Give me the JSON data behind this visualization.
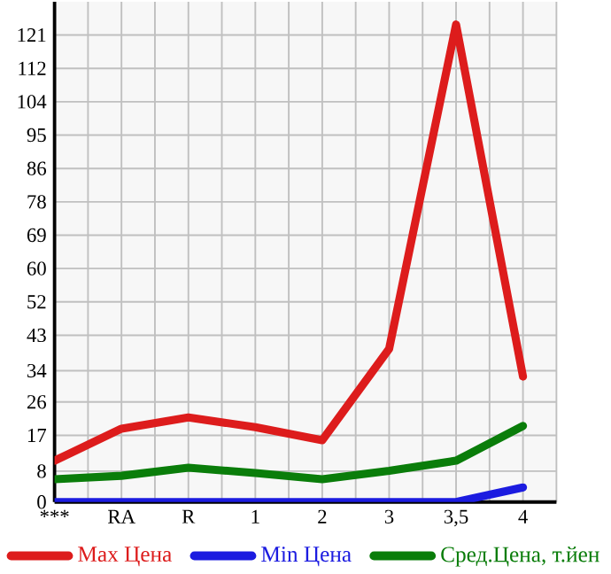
{
  "chart_data": {
    "type": "line",
    "categories": [
      "***",
      "RA",
      "R",
      "1",
      "2",
      "3",
      "3,5",
      "4"
    ],
    "series": [
      {
        "name": "Max Цена",
        "color": "#dd1c1c",
        "values": [
          10.7,
          19.0,
          21.9,
          19.4,
          16.0,
          39.7,
          123.7,
          32.5
        ]
      },
      {
        "name": "Min Цена",
        "color": "#1c1ce0",
        "values": [
          0,
          0,
          0,
          0,
          0,
          0,
          0,
          3.8
        ]
      },
      {
        "name": "Сред.Цена, т.йен",
        "color": "#0a7d0a",
        "values": [
          5.9,
          6.8,
          8.9,
          7.5,
          5.9,
          8.1,
          10.7,
          19.7
        ]
      }
    ],
    "ylim": [
      0,
      129.6
    ],
    "yticks": [
      {
        "value": 0,
        "label": "0"
      },
      {
        "value": 8,
        "label": "8"
      },
      {
        "value": 17.28,
        "label": "17"
      },
      {
        "value": 25.92,
        "label": "26"
      },
      {
        "value": 34,
        "label": "34"
      },
      {
        "value": 43.2,
        "label": "43"
      },
      {
        "value": 51.84,
        "label": "52"
      },
      {
        "value": 60.48,
        "label": "60"
      },
      {
        "value": 69.12,
        "label": "69"
      },
      {
        "value": 77.76,
        "label": "78"
      },
      {
        "value": 86.4,
        "label": "86"
      },
      {
        "value": 95.04,
        "label": "95"
      },
      {
        "value": 103.68,
        "label": "104"
      },
      {
        "value": 112.32,
        "label": "112"
      },
      {
        "value": 120.96,
        "label": "121"
      }
    ],
    "grid": true,
    "legend": "bottom",
    "marker": "none",
    "line_style": "solid"
  }
}
